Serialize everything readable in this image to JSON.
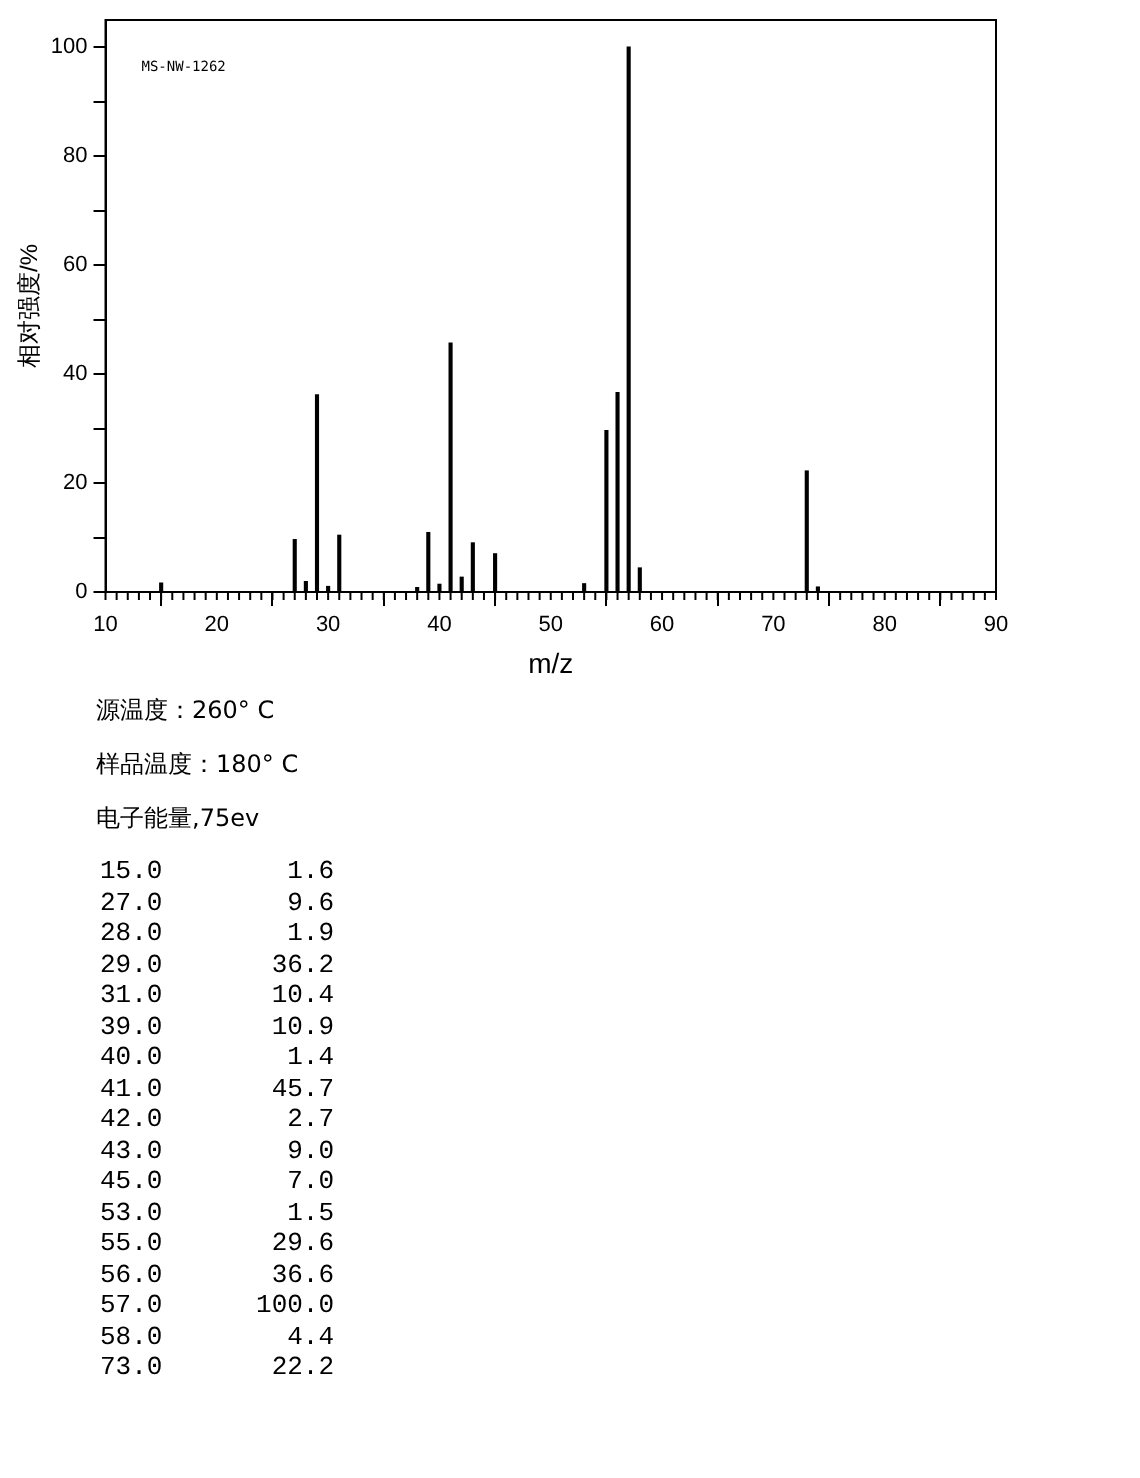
{
  "chart_data": {
    "type": "bar",
    "xlabel": "m/z",
    "ylabel": "相对强度/%",
    "x": [
      15,
      27,
      28,
      29,
      30,
      31,
      38,
      39,
      40,
      41,
      42,
      43,
      45,
      53,
      55,
      56,
      57,
      58,
      73,
      74
    ],
    "values": [
      1.6,
      9.6,
      1.9,
      36.2,
      1.0,
      10.4,
      0.8,
      10.9,
      1.4,
      45.7,
      2.7,
      9.0,
      7.0,
      1.5,
      29.6,
      36.6,
      100.0,
      4.4,
      22.2,
      0.9
    ],
    "color": "#000000",
    "xlim": [
      10,
      90
    ],
    "xticks": [
      10,
      20,
      30,
      40,
      50,
      60,
      70,
      80,
      90
    ],
    "ylim": [
      0,
      105
    ],
    "yticks": [
      0,
      {
        "value": 10,
        "label": null
      },
      20,
      {
        "value": 30,
        "label": null
      },
      40,
      {
        "value": 50,
        "label": null
      },
      60,
      {
        "value": 70,
        "label": null
      },
      80,
      {
        "value": 90,
        "label": null
      },
      100
    ],
    "grid": false,
    "legend": false,
    "annotations": [
      "MS-NW-1262",
      "源温度：260° C",
      "样品温度：180° C",
      "电子能量,75ev",
      "15.0        1.6",
      "27.0        9.6",
      "28.0        1.9",
      "29.0       36.2",
      "31.0       10.4",
      "39.0       10.9",
      "40.0        1.4",
      "41.0       45.7",
      "42.0        2.7",
      "43.0        9.0",
      "45.0        7.0",
      "53.0        1.5",
      "55.0       29.6",
      "56.0       36.6",
      "57.0      100.0",
      "58.0        4.4",
      "73.0       22.2"
    ]
  }
}
